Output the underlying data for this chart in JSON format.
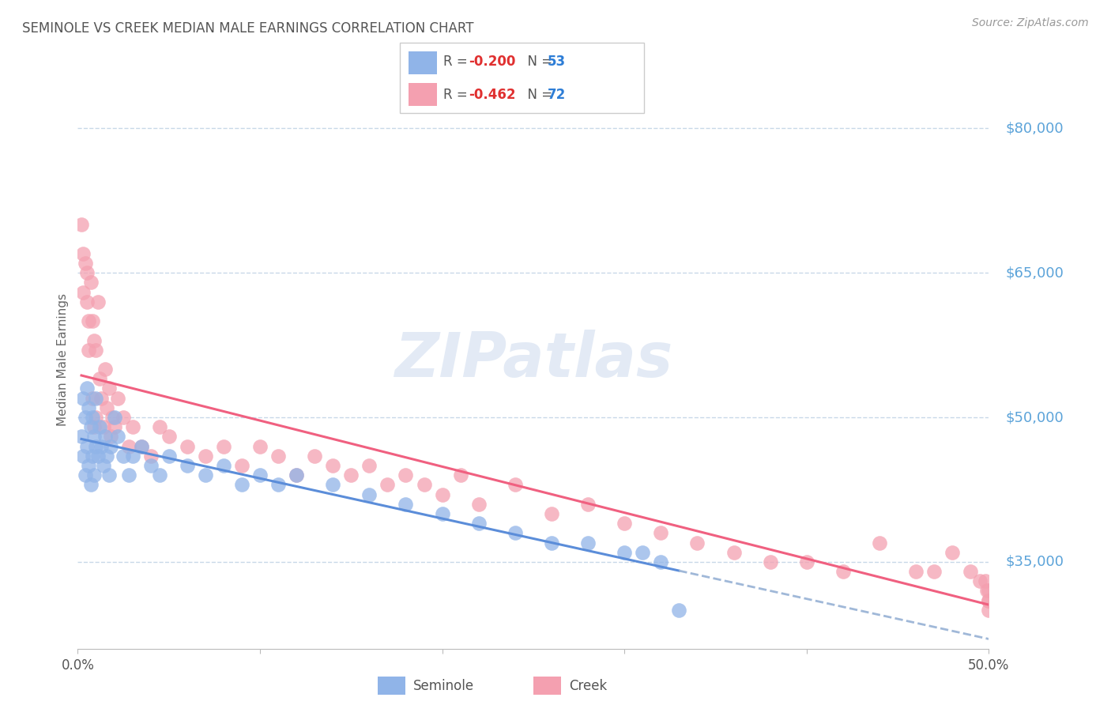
{
  "title": "SEMINOLE VS CREEK MEDIAN MALE EARNINGS CORRELATION CHART",
  "source": "Source: ZipAtlas.com",
  "ylabel": "Median Male Earnings",
  "watermark": "ZIPatlas",
  "xlim": [
    0.0,
    0.5
  ],
  "ylim": [
    26000,
    86000
  ],
  "ytick_values": [
    35000,
    50000,
    65000,
    80000
  ],
  "ytick_labels": [
    "$35,000",
    "$50,000",
    "$65,000",
    "$80,000"
  ],
  "seminole_color": "#90b4e8",
  "creek_color": "#f4a0b0",
  "seminole_R": -0.2,
  "seminole_N": 53,
  "creek_R": -0.462,
  "creek_N": 72,
  "legend_R_color": "#e03030",
  "legend_N_color": "#2d7dd6",
  "seminole_trendline_color": "#5b8dd9",
  "creek_trendline_color": "#f06080",
  "dashed_line_color": "#a0b8d8",
  "background_color": "#ffffff",
  "grid_color": "#c8d8e8",
  "title_color": "#555555",
  "seminole_x": [
    0.002,
    0.003,
    0.003,
    0.004,
    0.004,
    0.005,
    0.005,
    0.006,
    0.006,
    0.007,
    0.007,
    0.008,
    0.008,
    0.009,
    0.009,
    0.01,
    0.01,
    0.011,
    0.012,
    0.013,
    0.014,
    0.015,
    0.016,
    0.017,
    0.018,
    0.02,
    0.022,
    0.025,
    0.028,
    0.03,
    0.035,
    0.04,
    0.045,
    0.05,
    0.06,
    0.07,
    0.08,
    0.09,
    0.1,
    0.11,
    0.12,
    0.14,
    0.16,
    0.18,
    0.2,
    0.22,
    0.24,
    0.26,
    0.28,
    0.3,
    0.31,
    0.32,
    0.33
  ],
  "seminole_y": [
    48000,
    52000,
    46000,
    50000,
    44000,
    53000,
    47000,
    51000,
    45000,
    49000,
    43000,
    50000,
    46000,
    48000,
    44000,
    52000,
    47000,
    46000,
    49000,
    47000,
    45000,
    48000,
    46000,
    44000,
    47000,
    50000,
    48000,
    46000,
    44000,
    46000,
    47000,
    45000,
    44000,
    46000,
    45000,
    44000,
    45000,
    43000,
    44000,
    43000,
    44000,
    43000,
    42000,
    41000,
    40000,
    39000,
    38000,
    37000,
    37000,
    36000,
    36000,
    35000,
    30000
  ],
  "creek_x": [
    0.002,
    0.003,
    0.003,
    0.004,
    0.005,
    0.005,
    0.006,
    0.006,
    0.007,
    0.008,
    0.008,
    0.009,
    0.009,
    0.01,
    0.01,
    0.011,
    0.012,
    0.013,
    0.014,
    0.015,
    0.016,
    0.017,
    0.018,
    0.019,
    0.02,
    0.022,
    0.025,
    0.028,
    0.03,
    0.035,
    0.04,
    0.045,
    0.05,
    0.06,
    0.07,
    0.08,
    0.09,
    0.1,
    0.11,
    0.12,
    0.13,
    0.14,
    0.15,
    0.16,
    0.17,
    0.18,
    0.19,
    0.2,
    0.21,
    0.22,
    0.24,
    0.26,
    0.28,
    0.3,
    0.32,
    0.34,
    0.36,
    0.38,
    0.4,
    0.42,
    0.44,
    0.46,
    0.47,
    0.48,
    0.49,
    0.495,
    0.498,
    0.499,
    0.5,
    0.5,
    0.5,
    0.5
  ],
  "creek_y": [
    70000,
    67000,
    63000,
    66000,
    65000,
    62000,
    60000,
    57000,
    64000,
    60000,
    52000,
    58000,
    49000,
    57000,
    50000,
    62000,
    54000,
    52000,
    49000,
    55000,
    51000,
    53000,
    48000,
    50000,
    49000,
    52000,
    50000,
    47000,
    49000,
    47000,
    46000,
    49000,
    48000,
    47000,
    46000,
    47000,
    45000,
    47000,
    46000,
    44000,
    46000,
    45000,
    44000,
    45000,
    43000,
    44000,
    43000,
    42000,
    44000,
    41000,
    43000,
    40000,
    41000,
    39000,
    38000,
    37000,
    36000,
    35000,
    35000,
    34000,
    37000,
    34000,
    34000,
    36000,
    34000,
    33000,
    33000,
    32000,
    31000,
    32000,
    30000,
    31000
  ]
}
